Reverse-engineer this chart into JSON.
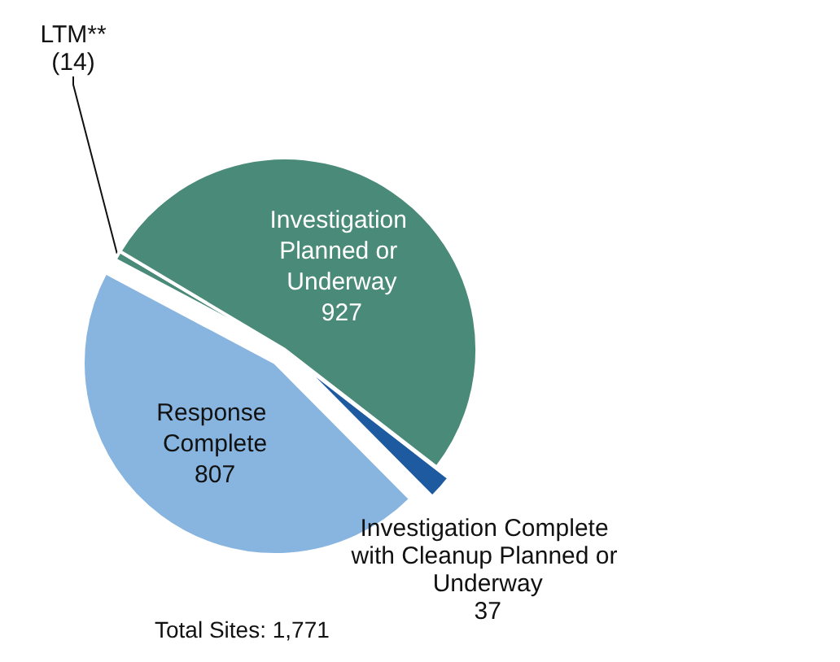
{
  "chart_data": {
    "type": "pie",
    "categories": [
      "LTM**",
      "Investigation Planned or Underway",
      "Investigation Complete with Cleanup Planned or Underway",
      "Response Complete"
    ],
    "values": [
      14,
      927,
      37,
      807
    ],
    "colors": [
      "#4a8a78",
      "#4a8a78",
      "#1e5aa0",
      "#88b5e0"
    ],
    "value_labels": [
      "(14)",
      "927",
      "37",
      "807"
    ],
    "annotations": [
      "Total Sites: 1,771"
    ],
    "legend": false
  }
}
